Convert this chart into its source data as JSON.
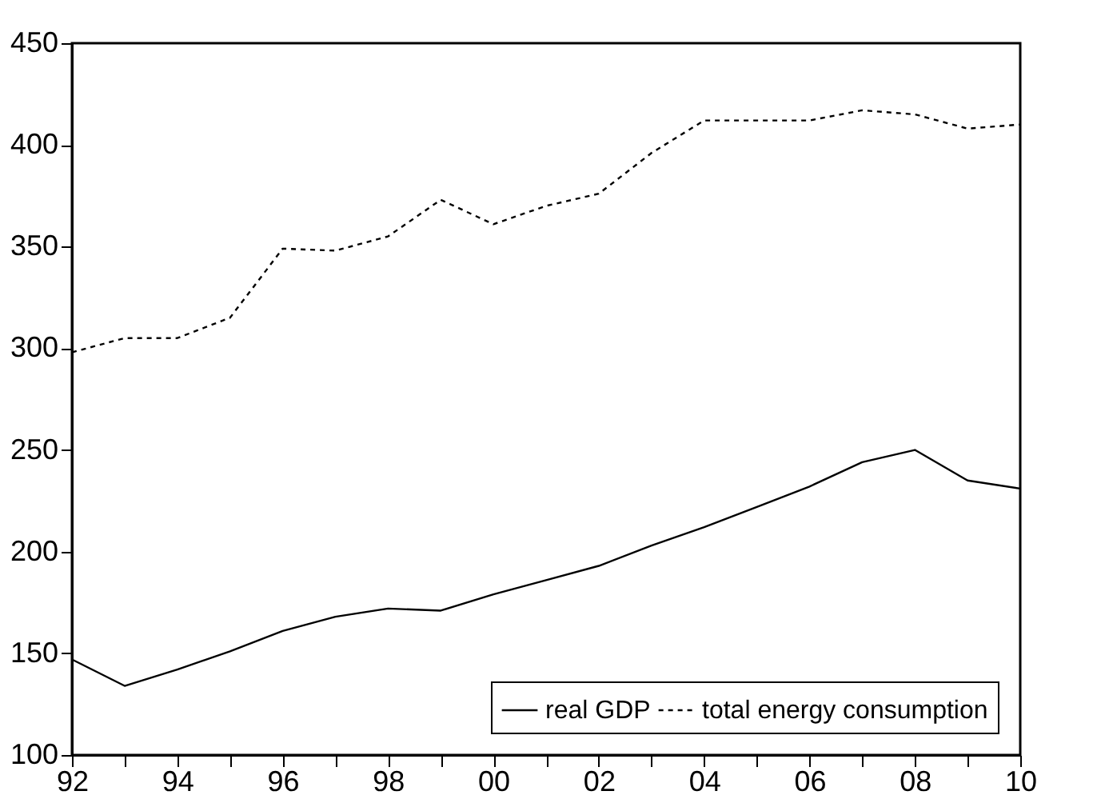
{
  "chart_data": {
    "type": "line",
    "x": [
      1992,
      1993,
      1994,
      1995,
      1996,
      1997,
      1998,
      1999,
      2000,
      2001,
      2002,
      2003,
      2004,
      2005,
      2006,
      2007,
      2008,
      2009,
      2010
    ],
    "series": [
      {
        "name": "real GDP",
        "color": "#000000",
        "line_style": "solid",
        "values": [
          147,
          134,
          142,
          151,
          161,
          168,
          172,
          171,
          179,
          186,
          193,
          203,
          212,
          222,
          232,
          244,
          250,
          235,
          231
        ]
      },
      {
        "name": "total energy consumption",
        "color": "#000000",
        "line_style": "dashed",
        "values": [
          298,
          305,
          305,
          315,
          349,
          348,
          355,
          373,
          361,
          370,
          376,
          396,
          412,
          412,
          412,
          417,
          415,
          408,
          410
        ]
      }
    ],
    "xlim": [
      1992,
      2010
    ],
    "xticks": [
      {
        "value": 1992,
        "label": "92"
      },
      {
        "value": 1993,
        "label": null
      },
      {
        "value": 1994,
        "label": "94"
      },
      {
        "value": 1995,
        "label": null
      },
      {
        "value": 1996,
        "label": "96"
      },
      {
        "value": 1997,
        "label": null
      },
      {
        "value": 1998,
        "label": "98"
      },
      {
        "value": 1999,
        "label": null
      },
      {
        "value": 2000,
        "label": "00"
      },
      {
        "value": 2001,
        "label": null
      },
      {
        "value": 2002,
        "label": "02"
      },
      {
        "value": 2003,
        "label": null
      },
      {
        "value": 2004,
        "label": "04"
      },
      {
        "value": 2005,
        "label": null
      },
      {
        "value": 2006,
        "label": "06"
      },
      {
        "value": 2007,
        "label": null
      },
      {
        "value": 2008,
        "label": "08"
      },
      {
        "value": 2009,
        "label": null
      },
      {
        "value": 2010,
        "label": "10"
      }
    ],
    "ylim": [
      100,
      450
    ],
    "yticks": [
      100,
      150,
      200,
      250,
      300,
      350,
      400,
      450
    ],
    "grid": false,
    "legend": "bottom right"
  }
}
